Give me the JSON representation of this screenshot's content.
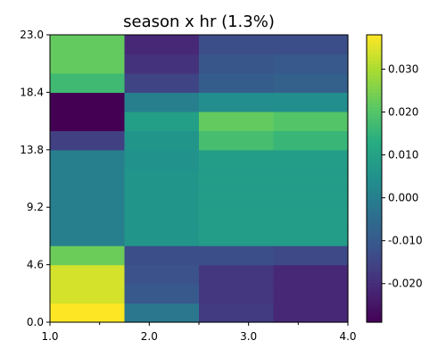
{
  "chart_data": {
    "type": "heatmap",
    "title": "season x hr (1.3%)",
    "x_ticks": [
      "1.0",
      "2.0",
      "3.0",
      "4.0"
    ],
    "y_ticks": [
      "0.0",
      "4.6",
      "9.2",
      "13.8",
      "18.4",
      "23.0"
    ],
    "xlim": [
      1.0,
      4.0
    ],
    "ylim": [
      0.0,
      23.0
    ],
    "x_bins": 4,
    "y_bins": 15,
    "colorbar": {
      "min": -0.029,
      "max": 0.038,
      "ticks": [
        0.03,
        0.02,
        0.01,
        0.0,
        -0.01,
        -0.02
      ],
      "tick_labels": [
        "0.030",
        "0.020",
        "0.010",
        "0.000",
        "-0.010",
        "-0.020"
      ],
      "colormap": "viridis"
    },
    "values": [
      [
        0.038,
        -0.002,
        -0.017,
        -0.021
      ],
      [
        0.034,
        -0.01,
        -0.018,
        -0.021
      ],
      [
        0.034,
        -0.012,
        -0.018,
        -0.021
      ],
      [
        0.023,
        -0.013,
        -0.013,
        -0.014
      ],
      [
        0.0,
        0.006,
        0.008,
        0.008
      ],
      [
        0.0,
        0.006,
        0.008,
        0.008
      ],
      [
        0.0,
        0.006,
        0.008,
        0.008
      ],
      [
        0.0,
        0.006,
        0.008,
        0.008
      ],
      [
        0.0,
        0.005,
        0.008,
        0.008
      ],
      [
        -0.016,
        0.006,
        0.018,
        0.016
      ],
      [
        -0.029,
        0.009,
        0.022,
        0.02
      ],
      [
        -0.029,
        0.0,
        0.004,
        0.004
      ],
      [
        0.017,
        -0.015,
        -0.009,
        -0.008
      ],
      [
        0.022,
        -0.019,
        -0.011,
        -0.01
      ],
      [
        0.022,
        -0.021,
        -0.013,
        -0.013
      ]
    ]
  }
}
